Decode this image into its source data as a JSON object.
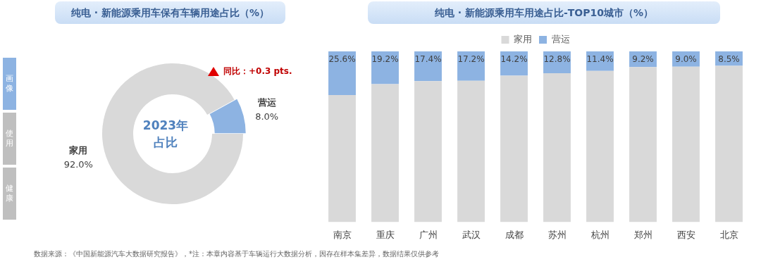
{
  "chart_data": [
    {
      "type": "donut",
      "title": "纯电 · 新能源乘用车保有车辆用途占比（%）",
      "categories": [
        "营运",
        "家用"
      ],
      "values": [
        8.0,
        92.0
      ],
      "colors": [
        "#8db3e2",
        "#d9d9d9"
      ],
      "value_labels": [
        "8.0%",
        "92.0%"
      ],
      "annotations": [
        "2023年占比",
        "同比：+0.3 pts.",
        "画像",
        "使用",
        "健康"
      ]
    },
    {
      "type": "bar",
      "title": "纯电 · 新能源乘用车用途占比-TOP10城市（%）",
      "categories": [
        "南京",
        "重庆",
        "广州",
        "武汉",
        "成都",
        "苏州",
        "杭州",
        "郑州",
        "西安",
        "北京"
      ],
      "stacked": true,
      "ylim": [
        0,
        100
      ],
      "tick_labels": "x",
      "legend": "top",
      "series": [
        {
          "name": "家用",
          "color": "#d9d9d9",
          "values": [
            74.4,
            80.8,
            82.6,
            82.8,
            85.8,
            87.2,
            88.6,
            90.8,
            91.0,
            91.5
          ]
        },
        {
          "name": "营运",
          "color": "#8db3e2",
          "values": [
            25.6,
            19.2,
            17.4,
            17.2,
            14.2,
            12.8,
            11.4,
            9.2,
            9.0,
            8.5
          ],
          "value_labels": [
            "25.6%",
            "19.2%",
            "17.4%",
            "17.2%",
            "14.2%",
            "12.8%",
            "11.4%",
            "9.2%",
            "9.0%",
            "8.5%"
          ]
        }
      ],
      "annotations": [
        "数据来源：《中国新能源汽车大数据研究报告》，*注：本章内容基于车辆运行大数据分析，因存在样本集差异，数据结果仅供参考"
      ]
    }
  ]
}
